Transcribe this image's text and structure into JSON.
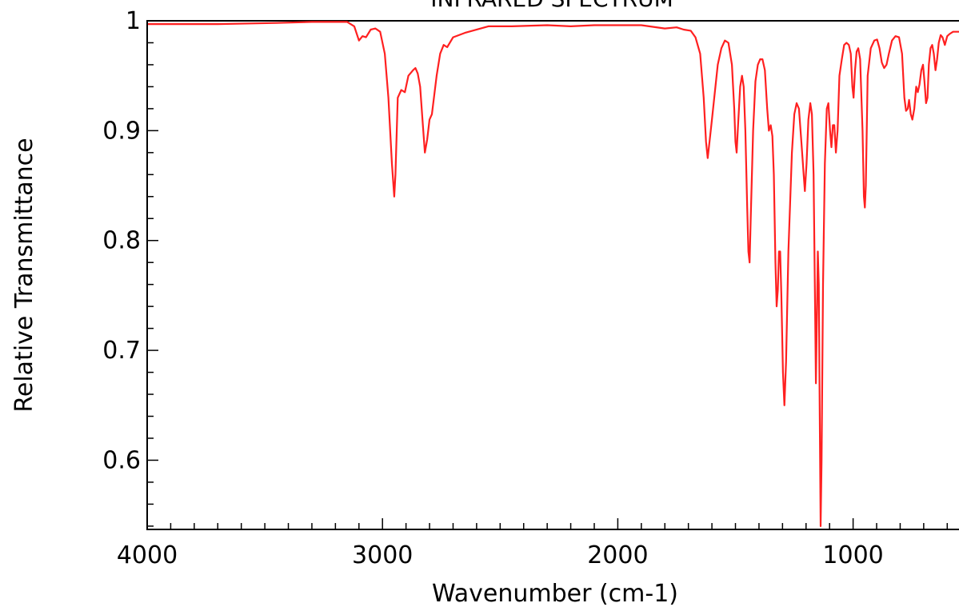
{
  "chart_data": {
    "type": "line",
    "title": "INFRARED SPECTRUM",
    "xlabel": "Wavenumber (cm-1)",
    "ylabel": "Relative Transmittance",
    "xlim": [
      4000,
      550
    ],
    "ylim": [
      0.537,
      1.0
    ],
    "x_reversed": true,
    "grid": false,
    "legend": "none",
    "line_color": "#ff2020",
    "x_ticks": [
      {
        "value": 4000,
        "label": "4000"
      },
      {
        "value": 3000,
        "label": "3000"
      },
      {
        "value": 2000,
        "label": "2000"
      },
      {
        "value": 1000,
        "label": "1000"
      }
    ],
    "y_ticks": [
      {
        "value": 1.0,
        "label": "1"
      },
      {
        "value": 0.9,
        "label": "0.9"
      },
      {
        "value": 0.8,
        "label": "0.8"
      },
      {
        "value": 0.7,
        "label": "0.7"
      },
      {
        "value": 0.6,
        "label": "0.6"
      }
    ],
    "series": [
      {
        "points": [
          [
            4000,
            0.997
          ],
          [
            3700,
            0.997
          ],
          [
            3450,
            0.998
          ],
          [
            3300,
            0.999
          ],
          [
            3150,
            0.999
          ],
          [
            3120,
            0.995
          ],
          [
            3100,
            0.982
          ],
          [
            3085,
            0.986
          ],
          [
            3070,
            0.985
          ],
          [
            3050,
            0.992
          ],
          [
            3030,
            0.993
          ],
          [
            3010,
            0.99
          ],
          [
            2990,
            0.97
          ],
          [
            2975,
            0.93
          ],
          [
            2960,
            0.87
          ],
          [
            2950,
            0.84
          ],
          [
            2945,
            0.86
          ],
          [
            2935,
            0.93
          ],
          [
            2920,
            0.937
          ],
          [
            2905,
            0.935
          ],
          [
            2890,
            0.95
          ],
          [
            2870,
            0.955
          ],
          [
            2860,
            0.957
          ],
          [
            2850,
            0.952
          ],
          [
            2840,
            0.94
          ],
          [
            2830,
            0.91
          ],
          [
            2820,
            0.88
          ],
          [
            2810,
            0.892
          ],
          [
            2800,
            0.91
          ],
          [
            2790,
            0.915
          ],
          [
            2770,
            0.95
          ],
          [
            2755,
            0.97
          ],
          [
            2740,
            0.978
          ],
          [
            2725,
            0.976
          ],
          [
            2700,
            0.985
          ],
          [
            2650,
            0.989
          ],
          [
            2550,
            0.995
          ],
          [
            2450,
            0.995
          ],
          [
            2300,
            0.996
          ],
          [
            2200,
            0.995
          ],
          [
            2100,
            0.996
          ],
          [
            2000,
            0.996
          ],
          [
            1900,
            0.996
          ],
          [
            1800,
            0.993
          ],
          [
            1750,
            0.994
          ],
          [
            1720,
            0.992
          ],
          [
            1690,
            0.991
          ],
          [
            1670,
            0.985
          ],
          [
            1650,
            0.97
          ],
          [
            1635,
            0.93
          ],
          [
            1625,
            0.89
          ],
          [
            1618,
            0.875
          ],
          [
            1610,
            0.89
          ],
          [
            1600,
            0.91
          ],
          [
            1590,
            0.93
          ],
          [
            1575,
            0.96
          ],
          [
            1560,
            0.975
          ],
          [
            1545,
            0.982
          ],
          [
            1530,
            0.98
          ],
          [
            1515,
            0.96
          ],
          [
            1505,
            0.92
          ],
          [
            1500,
            0.89
          ],
          [
            1495,
            0.88
          ],
          [
            1490,
            0.9
          ],
          [
            1480,
            0.94
          ],
          [
            1472,
            0.95
          ],
          [
            1465,
            0.94
          ],
          [
            1458,
            0.9
          ],
          [
            1450,
            0.83
          ],
          [
            1445,
            0.79
          ],
          [
            1440,
            0.78
          ],
          [
            1435,
            0.82
          ],
          [
            1425,
            0.9
          ],
          [
            1415,
            0.945
          ],
          [
            1405,
            0.96
          ],
          [
            1395,
            0.965
          ],
          [
            1385,
            0.965
          ],
          [
            1375,
            0.955
          ],
          [
            1365,
            0.92
          ],
          [
            1358,
            0.9
          ],
          [
            1350,
            0.905
          ],
          [
            1343,
            0.895
          ],
          [
            1337,
            0.86
          ],
          [
            1330,
            0.78
          ],
          [
            1325,
            0.74
          ],
          [
            1320,
            0.755
          ],
          [
            1315,
            0.79
          ],
          [
            1310,
            0.79
          ],
          [
            1305,
            0.75
          ],
          [
            1298,
            0.68
          ],
          [
            1292,
            0.65
          ],
          [
            1285,
            0.69
          ],
          [
            1275,
            0.79
          ],
          [
            1260,
            0.88
          ],
          [
            1250,
            0.915
          ],
          [
            1240,
            0.925
          ],
          [
            1230,
            0.92
          ],
          [
            1220,
            0.89
          ],
          [
            1210,
            0.86
          ],
          [
            1205,
            0.845
          ],
          [
            1198,
            0.87
          ],
          [
            1190,
            0.91
          ],
          [
            1182,
            0.925
          ],
          [
            1175,
            0.915
          ],
          [
            1168,
            0.86
          ],
          [
            1162,
            0.75
          ],
          [
            1158,
            0.67
          ],
          [
            1154,
            0.73
          ],
          [
            1150,
            0.79
          ],
          [
            1146,
            0.76
          ],
          [
            1142,
            0.65
          ],
          [
            1138,
            0.54
          ],
          [
            1134,
            0.6
          ],
          [
            1128,
            0.76
          ],
          [
            1120,
            0.87
          ],
          [
            1112,
            0.92
          ],
          [
            1105,
            0.925
          ],
          [
            1098,
            0.9
          ],
          [
            1092,
            0.885
          ],
          [
            1086,
            0.905
          ],
          [
            1080,
            0.905
          ],
          [
            1073,
            0.88
          ],
          [
            1066,
            0.9
          ],
          [
            1058,
            0.95
          ],
          [
            1048,
            0.965
          ],
          [
            1038,
            0.978
          ],
          [
            1028,
            0.98
          ],
          [
            1018,
            0.978
          ],
          [
            1010,
            0.97
          ],
          [
            1003,
            0.94
          ],
          [
            998,
            0.93
          ],
          [
            992,
            0.955
          ],
          [
            985,
            0.972
          ],
          [
            978,
            0.975
          ],
          [
            970,
            0.965
          ],
          [
            960,
            0.9
          ],
          [
            954,
            0.84
          ],
          [
            950,
            0.83
          ],
          [
            946,
            0.85
          ],
          [
            938,
            0.95
          ],
          [
            925,
            0.975
          ],
          [
            910,
            0.982
          ],
          [
            898,
            0.983
          ],
          [
            888,
            0.975
          ],
          [
            878,
            0.962
          ],
          [
            868,
            0.957
          ],
          [
            858,
            0.96
          ],
          [
            848,
            0.97
          ],
          [
            835,
            0.982
          ],
          [
            820,
            0.986
          ],
          [
            805,
            0.985
          ],
          [
            792,
            0.97
          ],
          [
            782,
            0.93
          ],
          [
            775,
            0.918
          ],
          [
            768,
            0.92
          ],
          [
            762,
            0.928
          ],
          [
            755,
            0.915
          ],
          [
            748,
            0.91
          ],
          [
            740,
            0.92
          ],
          [
            732,
            0.94
          ],
          [
            725,
            0.935
          ],
          [
            718,
            0.942
          ],
          [
            710,
            0.955
          ],
          [
            703,
            0.96
          ],
          [
            697,
            0.945
          ],
          [
            690,
            0.925
          ],
          [
            684,
            0.93
          ],
          [
            678,
            0.96
          ],
          [
            671,
            0.975
          ],
          [
            664,
            0.978
          ],
          [
            657,
            0.97
          ],
          [
            650,
            0.955
          ],
          [
            643,
            0.965
          ],
          [
            636,
            0.98
          ],
          [
            628,
            0.987
          ],
          [
            620,
            0.985
          ],
          [
            610,
            0.978
          ],
          [
            600,
            0.986
          ],
          [
            590,
            0.988
          ],
          [
            575,
            0.99
          ],
          [
            560,
            0.99
          ],
          [
            550,
            0.99
          ]
        ]
      }
    ]
  }
}
